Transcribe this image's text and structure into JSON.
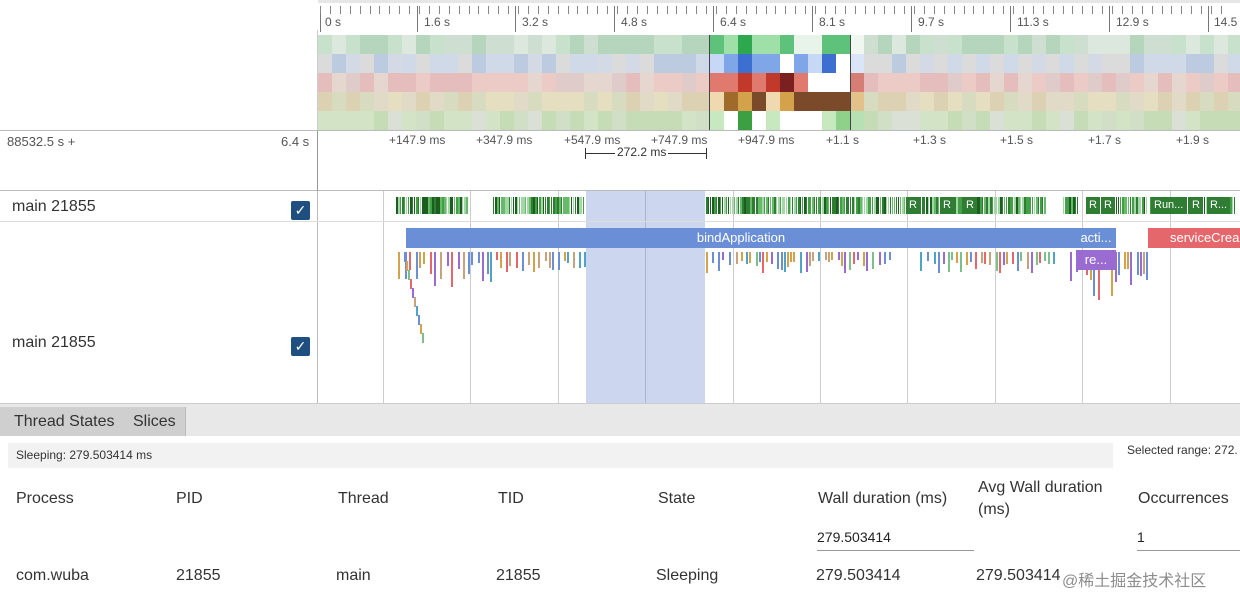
{
  "colors": {
    "selection": "#8ca6dc",
    "running": "#2e7d32",
    "runnable": "#a5d6a7",
    "bind_application": "#6b8fd6",
    "activity": "#6b8fd6",
    "service": "#e5676c",
    "resume": "#9a6bd0",
    "checkbox": "#1f4f80"
  },
  "overview": {
    "tick_labels": [
      "0 s",
      "1.6 s",
      "3.2 s",
      "4.8 s",
      "6.4 s",
      "8.1 s",
      "9.7 s",
      "11.3 s",
      "12.9 s",
      "14.5"
    ]
  },
  "timeline": {
    "offset_label": "88532.5 s +",
    "window_label": "6.4 s",
    "tick_labels": [
      "+147.9 ms",
      "+347.9 ms",
      "+547.9 ms",
      "+747.9 ms",
      "+947.9 ms",
      "+1.1 s",
      "+1.3 s",
      "+1.5 s",
      "+1.7 s",
      "+1.9 s"
    ],
    "measure_label": "272.2 ms"
  },
  "tracks": {
    "thread_state": {
      "name": "main 21855",
      "checked": true,
      "labels": [
        "R",
        "R",
        "R",
        "R",
        "R",
        "Run...",
        "R",
        "R..."
      ]
    },
    "slices": {
      "name": "main 21855",
      "checked": true,
      "labels": [
        "bindApplication",
        "acti...",
        "serviceCrea",
        "re..."
      ]
    }
  },
  "panel": {
    "tabs": [
      "Thread States",
      "Slices"
    ],
    "status": "Sleeping: 279.503414 ms",
    "selected_range": "Selected range: 272.",
    "columns": [
      "Process",
      "PID",
      "Thread",
      "TID",
      "State",
      "Wall duration (ms)",
      "Avg Wall duration (ms)",
      "Occurrences"
    ],
    "filters": {
      "wall_duration": "279.503414",
      "occurrences": "1"
    },
    "row": {
      "process": "com.wuba",
      "pid": "21855",
      "thread": "main",
      "tid": "21855",
      "state": "Sleeping",
      "wall_duration": "279.503414",
      "avg_wall_duration": "279.503414"
    },
    "watermark": "@稀土掘金技术社区"
  }
}
